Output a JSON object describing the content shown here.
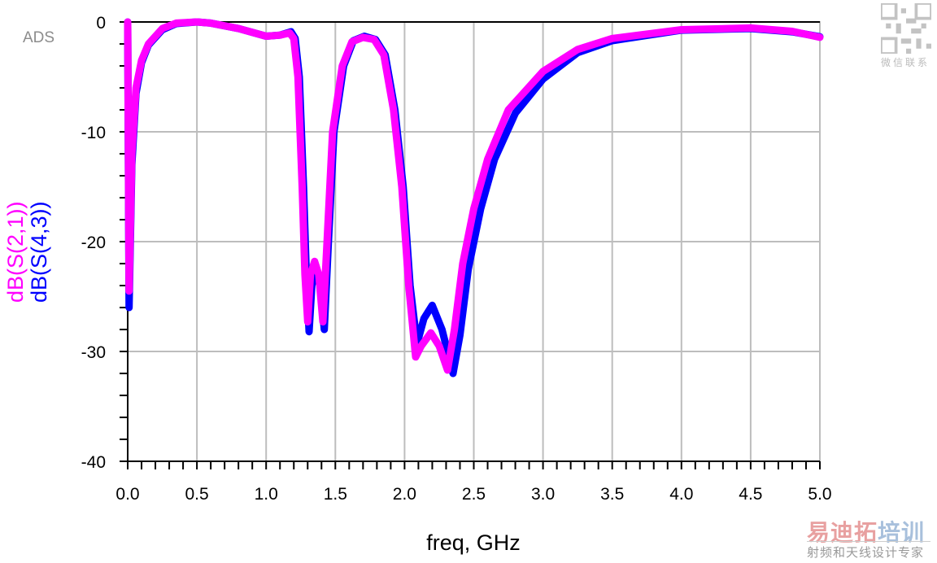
{
  "chart_data": {
    "type": "line",
    "title": "",
    "xlabel": "freq, GHz",
    "ylabel_series": [
      "dB(S(2,1))",
      "dB(S(4,3))"
    ],
    "xlim": [
      0,
      5
    ],
    "ylim": [
      -40,
      0
    ],
    "x_ticks": [
      "0.0",
      "0.5",
      "1.0",
      "1.5",
      "2.0",
      "2.5",
      "3.0",
      "3.5",
      "4.0",
      "4.5",
      "5.0"
    ],
    "y_ticks": [
      "0",
      "-10",
      "-20",
      "-30",
      "-40"
    ],
    "grid": true,
    "series": [
      {
        "name": "dB(S(4,3))",
        "color": "#0000ff",
        "points": [
          [
            0,
            0
          ],
          [
            0.01,
            -26
          ],
          [
            0.03,
            -13
          ],
          [
            0.06,
            -6.5
          ],
          [
            0.1,
            -3.7
          ],
          [
            0.15,
            -2.1
          ],
          [
            0.25,
            -0.7
          ],
          [
            0.35,
            -0.15
          ],
          [
            0.5,
            0
          ],
          [
            0.6,
            -0.1
          ],
          [
            0.8,
            -0.6
          ],
          [
            1.0,
            -1.3
          ],
          [
            1.1,
            -1.2
          ],
          [
            1.18,
            -0.9
          ],
          [
            1.21,
            -1.5
          ],
          [
            1.24,
            -5
          ],
          [
            1.27,
            -15
          ],
          [
            1.29,
            -23
          ],
          [
            1.31,
            -28.2
          ],
          [
            1.33,
            -24
          ],
          [
            1.36,
            -22.5
          ],
          [
            1.39,
            -24
          ],
          [
            1.42,
            -28
          ],
          [
            1.45,
            -20
          ],
          [
            1.49,
            -10
          ],
          [
            1.56,
            -4
          ],
          [
            1.63,
            -1.7
          ],
          [
            1.71,
            -1.3
          ],
          [
            1.79,
            -1.6
          ],
          [
            1.86,
            -3
          ],
          [
            1.93,
            -8
          ],
          [
            1.99,
            -15
          ],
          [
            2.04,
            -24
          ],
          [
            2.09,
            -29.3
          ],
          [
            2.14,
            -27
          ],
          [
            2.2,
            -25.8
          ],
          [
            2.27,
            -28
          ],
          [
            2.35,
            -32
          ],
          [
            2.4,
            -28.5
          ],
          [
            2.46,
            -22.5
          ],
          [
            2.55,
            -17
          ],
          [
            2.65,
            -12.5
          ],
          [
            2.8,
            -8.3
          ],
          [
            3.0,
            -5.2
          ],
          [
            3.25,
            -2.8
          ],
          [
            3.5,
            -1.7
          ],
          [
            4.0,
            -0.75
          ],
          [
            4.5,
            -0.6
          ],
          [
            4.8,
            -0.9
          ],
          [
            5.0,
            -1.35
          ]
        ]
      },
      {
        "name": "dB(S(2,1))",
        "color": "#ff00ff",
        "points": [
          [
            0,
            0
          ],
          [
            0.01,
            -24.5
          ],
          [
            0.03,
            -12
          ],
          [
            0.06,
            -6
          ],
          [
            0.1,
            -3.5
          ],
          [
            0.15,
            -2
          ],
          [
            0.25,
            -0.6
          ],
          [
            0.35,
            -0.1
          ],
          [
            0.5,
            0
          ],
          [
            0.6,
            -0.1
          ],
          [
            0.8,
            -0.6
          ],
          [
            1.0,
            -1.3
          ],
          [
            1.1,
            -1.2
          ],
          [
            1.17,
            -1.0
          ],
          [
            1.2,
            -1.5
          ],
          [
            1.23,
            -5
          ],
          [
            1.26,
            -15
          ],
          [
            1.28,
            -23
          ],
          [
            1.3,
            -27.3
          ],
          [
            1.32,
            -23
          ],
          [
            1.35,
            -21.8
          ],
          [
            1.38,
            -23
          ],
          [
            1.41,
            -27.3
          ],
          [
            1.44,
            -20
          ],
          [
            1.48,
            -10
          ],
          [
            1.55,
            -4
          ],
          [
            1.62,
            -1.8
          ],
          [
            1.7,
            -1.4
          ],
          [
            1.78,
            -1.6
          ],
          [
            1.85,
            -3
          ],
          [
            1.92,
            -8
          ],
          [
            1.98,
            -15
          ],
          [
            2.03,
            -24
          ],
          [
            2.08,
            -30.5
          ],
          [
            2.12,
            -29.5
          ],
          [
            2.19,
            -28.3
          ],
          [
            2.25,
            -29.5
          ],
          [
            2.31,
            -31.7
          ],
          [
            2.36,
            -28
          ],
          [
            2.42,
            -22
          ],
          [
            2.5,
            -17
          ],
          [
            2.6,
            -12.5
          ],
          [
            2.75,
            -8
          ],
          [
            3.0,
            -4.5
          ],
          [
            3.25,
            -2.5
          ],
          [
            3.5,
            -1.5
          ],
          [
            4.0,
            -0.7
          ],
          [
            4.5,
            -0.55
          ],
          [
            4.8,
            -0.85
          ],
          [
            5.0,
            -1.4
          ]
        ]
      }
    ]
  },
  "labels": {
    "tool_label": "ADS",
    "qr_caption": "微信联系",
    "brand_a": "易迪拓",
    "brand_b": "培训",
    "brand_sub": "射频和天线设计专家"
  }
}
